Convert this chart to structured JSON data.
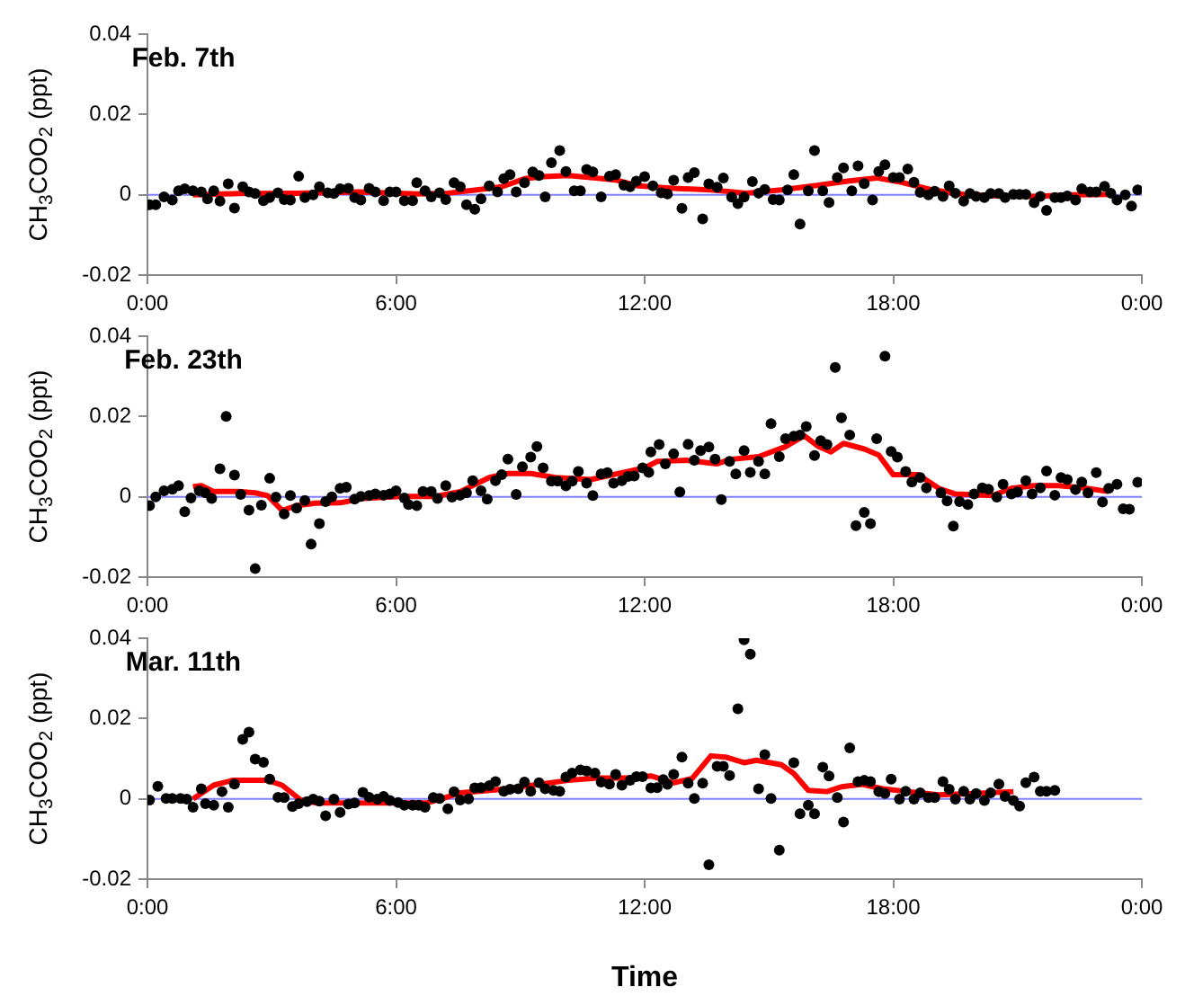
{
  "chart_data": [
    {
      "type": "scatter",
      "title": "Feb. 7th",
      "ylabel": "CH$_{3}$COO$_{2}$ (ppt)",
      "xlim": [
        0,
        24
      ],
      "xticks": [
        {
          "value": 0,
          "label": "0:00"
        },
        {
          "value": 6,
          "label": "6:00"
        },
        {
          "value": 12,
          "label": "12:00"
        },
        {
          "value": 18,
          "label": "18:00"
        },
        {
          "value": 24,
          "label": "0:00"
        }
      ],
      "ylim": [
        -0.02,
        0.04
      ],
      "yticks": [
        -0.02,
        0,
        0.02,
        0.04
      ],
      "grid": false,
      "legend": false,
      "marker": "circle",
      "ref_lines": [
        {
          "axis": "y",
          "value": 0,
          "color": "#8080ff"
        }
      ],
      "series": [
        {
          "type": "scatter",
          "color": "#000000",
          "x": [
            0.05,
            0.2,
            0.4,
            0.6,
            0.75,
            0.9,
            1.1,
            1.3,
            1.45,
            1.6,
            1.75,
            1.95,
            2.1,
            2.3,
            2.45,
            2.6,
            2.8,
            2.95,
            3.15,
            3.3,
            3.45,
            3.65,
            3.8,
            4.0,
            4.15,
            4.35,
            4.5,
            4.65,
            4.85,
            5.0,
            5.15,
            5.35,
            5.5,
            5.7,
            5.85,
            6.0,
            6.2,
            6.4,
            6.5,
            6.7,
            6.85,
            7.05,
            7.2,
            7.4,
            7.55,
            7.7,
            7.9,
            8.05,
            8.25,
            8.45,
            8.6,
            8.75,
            8.9,
            9.1,
            9.3,
            9.45,
            9.6,
            9.75,
            9.95,
            10.1,
            10.3,
            10.45,
            10.6,
            10.75,
            10.95,
            11.15,
            11.3,
            11.5,
            11.65,
            11.8,
            12.0,
            12.2,
            12.4,
            12.55,
            12.7,
            12.9,
            13.05,
            13.2,
            13.4,
            13.55,
            13.75,
            13.9,
            14.1,
            14.25,
            14.4,
            14.6,
            14.75,
            14.9,
            15.1,
            15.25,
            15.45,
            15.6,
            15.75,
            15.95,
            16.1,
            16.3,
            16.45,
            16.65,
            16.8,
            17.0,
            17.15,
            17.3,
            17.5,
            17.65,
            17.8,
            18.0,
            18.15,
            18.35,
            18.5,
            18.65,
            18.85,
            19.0,
            19.2,
            19.35,
            19.5,
            19.7,
            19.85,
            20.0,
            20.2,
            20.35,
            20.55,
            20.7,
            20.9,
            21.05,
            21.2,
            21.4,
            21.55,
            21.7,
            21.9,
            22.05,
            22.2,
            22.4,
            22.55,
            22.75,
            22.9,
            23.1,
            23.25,
            23.4,
            23.6,
            23.75,
            23.9
          ],
          "values": [
            -0.0025,
            -0.0025,
            -0.0005,
            -0.0013,
            0.001,
            0.0015,
            0.001,
            0.0007,
            -0.001,
            0.001,
            -0.0016,
            0.0027,
            -0.0033,
            0.002,
            0.0007,
            0.0003,
            -0.0015,
            -0.0007,
            0.0005,
            -0.0012,
            -0.0013,
            0.0046,
            -0.0007,
            0,
            0.002,
            0.0005,
            0.0003,
            0.0015,
            0.0016,
            -0.0007,
            -0.0013,
            0.0016,
            0.0007,
            -0.0015,
            0.0007,
            0.0007,
            -0.0015,
            -0.0015,
            0.003,
            0.001,
            -0.0005,
            0.0005,
            -0.0012,
            0.003,
            0.002,
            -0.0025,
            -0.0036,
            -0.001,
            0.0022,
            0.0007,
            0.004,
            0.005,
            0.0007,
            0.003,
            0.0057,
            0.0048,
            -0.0005,
            0.008,
            0.011,
            0.0058,
            0.001,
            0.001,
            0.0063,
            0.0057,
            -0.0005,
            0.0046,
            0.005,
            0.0024,
            0.002,
            0.0034,
            0.0045,
            0.0022,
            0.0005,
            0.0002,
            0.0036,
            -0.0034,
            0.0043,
            0.0055,
            -0.006,
            0.0027,
            0.0019,
            0.0042,
            -0.0006,
            -0.0022,
            -0.0006,
            0.0033,
            0.0004,
            0.0013,
            -0.0012,
            -0.0013,
            0.0012,
            0.005,
            -0.0073,
            0.001,
            0.011,
            0.001,
            -0.0019,
            0.0043,
            0.0067,
            0.001,
            0.0072,
            0.0028,
            -0.0013,
            0.0058,
            0.0075,
            0.0043,
            0.0043,
            0.0064,
            0.0031,
            0.0006,
            0,
            0.0009,
            -0.0004,
            0.0022,
            0.0004,
            -0.0016,
            0.0003,
            -0.0004,
            -0.0007,
            0.0003,
            0.0003,
            -0.0007,
            0.0001,
            0.0001,
            0.0001,
            -0.002,
            -0.0004,
            -0.0039,
            -0.0007,
            -0.0007,
            -0.0003,
            -0.0013,
            0.0015,
            0.0007,
            0.0007,
            0.0021,
            0.0004,
            -0.0013,
            0,
            -0.0028,
            0.0012
          ]
        },
        {
          "type": "line",
          "marker": "none",
          "color": "#ff0000",
          "x": [
            1.1,
            2.2,
            3.6,
            5.1,
            6.5,
            7.25,
            7.95,
            8.55,
            9.1,
            9.55,
            10.15,
            10.7,
            11.3,
            11.85,
            12.7,
            13.6,
            14.45,
            15.3,
            16.2,
            16.9,
            17.6,
            18.2,
            18.95,
            19.7,
            20.55,
            21.4,
            22.3,
            23.3
          ],
          "values": [
            0,
            0.0003,
            0.0004,
            0.0007,
            0.0002,
            0.0004,
            0.0012,
            0.002,
            0.004,
            0.0045,
            0.0048,
            0.0043,
            0.0037,
            0.0022,
            0.0016,
            0.0012,
            0.0004,
            0.0012,
            0.0024,
            0.0034,
            0.0042,
            0.0031,
            0.0012,
            0.0001,
            -0.0003,
            -0.0004,
            0,
            0.0001
          ]
        }
      ]
    },
    {
      "type": "scatter",
      "title": "Feb. 23th",
      "ylabel": "CH$_{3}$COO$_{2}$ (ppt)",
      "xlim": [
        0,
        24
      ],
      "xticks": [
        {
          "value": 0,
          "label": "0:00"
        },
        {
          "value": 6,
          "label": "6:00"
        },
        {
          "value": 12,
          "label": "12:00"
        },
        {
          "value": 18,
          "label": "18:00"
        },
        {
          "value": 24,
          "label": "0:00"
        }
      ],
      "ylim": [
        -0.02,
        0.04
      ],
      "yticks": [
        -0.02,
        0,
        0.02,
        0.04
      ],
      "grid": false,
      "legend": false,
      "marker": "circle",
      "ref_lines": [
        {
          "axis": "y",
          "value": 0,
          "color": "#8080ff"
        }
      ],
      "series": [
        {
          "type": "scatter",
          "color": "#000000",
          "x": [
            0.05,
            0.2,
            0.4,
            0.6,
            0.75,
            0.9,
            1.05,
            1.25,
            1.4,
            1.55,
            1.75,
            1.9,
            2.1,
            2.25,
            2.45,
            2.6,
            2.75,
            2.95,
            3.1,
            3.3,
            3.45,
            3.6,
            3.8,
            3.95,
            4.15,
            4.3,
            4.45,
            4.65,
            4.8,
            5.0,
            5.15,
            5.35,
            5.5,
            5.7,
            5.85,
            6.0,
            6.2,
            6.3,
            6.5,
            6.65,
            6.85,
            7.0,
            7.2,
            7.35,
            7.55,
            7.7,
            7.85,
            8.05,
            8.2,
            8.4,
            8.55,
            8.7,
            8.9,
            9.05,
            9.25,
            9.4,
            9.55,
            9.75,
            9.9,
            10.1,
            10.25,
            10.4,
            10.6,
            10.75,
            10.95,
            11.1,
            11.25,
            11.45,
            11.6,
            11.75,
            11.95,
            12.1,
            12.15,
            12.35,
            12.5,
            12.7,
            12.85,
            13.05,
            13.2,
            13.35,
            13.55,
            13.7,
            13.85,
            14.05,
            14.2,
            14.4,
            14.55,
            14.75,
            14.9,
            15.05,
            15.25,
            15.4,
            15.6,
            15.75,
            15.9,
            16.1,
            16.25,
            16.4,
            16.6,
            16.75,
            16.95,
            17.1,
            17.3,
            17.45,
            17.6,
            17.8,
            17.95,
            18.1,
            18.3,
            18.45,
            18.65,
            18.8,
            19.15,
            19.3,
            19.45,
            19.6,
            19.8,
            19.95,
            20.15,
            20.3,
            20.5,
            20.65,
            20.85,
            21.0,
            21.2,
            21.35,
            21.55,
            21.7,
            21.9,
            22.05,
            22.2,
            22.4,
            22.55,
            22.7,
            22.9,
            23.05,
            23.2,
            23.4,
            23.55,
            23.7,
            23.9
          ],
          "values": [
            -0.0022,
            0,
            0.0015,
            0.0019,
            0.0028,
            -0.0037,
            -0.0003,
            0.0015,
            0.001,
            -0.0004,
            0.007,
            0.02,
            0.0054,
            0.0006,
            -0.0033,
            -0.0179,
            -0.0021,
            0.0046,
            -0.0001,
            -0.0043,
            0.0003,
            -0.0028,
            -0.0009,
            -0.0118,
            -0.0067,
            -0.0012,
            0,
            0.0021,
            0.0024,
            -0.0006,
            0.0001,
            0.0003,
            0.0007,
            0.0004,
            0.0007,
            0.0015,
            -0.0003,
            -0.0019,
            -0.0022,
            0.0013,
            0.0013,
            -0.0004,
            0.0028,
            -0.0001,
            0.0004,
            0.001,
            0.004,
            0.0015,
            -0.0006,
            0.004,
            0.0055,
            0.0094,
            0.0006,
            0.0075,
            0.0099,
            0.0125,
            0.0072,
            0.0039,
            0.0039,
            0.0027,
            0.0039,
            0.0063,
            0.0034,
            0.0003,
            0.0057,
            0.006,
            0.0034,
            0.004,
            0.0051,
            0.0052,
            0.0072,
            0.0061,
            0.0112,
            0.013,
            0.0082,
            0.0107,
            0.0012,
            0.0131,
            0.0091,
            0.0115,
            0.0124,
            0.0094,
            -0.0007,
            0.0088,
            0.0057,
            0.0115,
            0.0061,
            0.0088,
            0.0057,
            0.0182,
            0.01,
            0.0145,
            0.0151,
            0.0154,
            0.0175,
            0.0103,
            0.014,
            0.013,
            0.0322,
            0.0197,
            0.0154,
            -0.0072,
            -0.0039,
            -0.0067,
            0.0145,
            0.035,
            0.0113,
            0.0099,
            0.0063,
            0.0037,
            0.0048,
            0.0022,
            0.001,
            -0.001,
            -0.0073,
            -0.0012,
            -0.0019,
            0.0007,
            0.0022,
            0.0019,
            -0.0001,
            0.0031,
            0.0007,
            0.0012,
            0.004,
            0.0007,
            0.0022,
            0.0064,
            0.0004,
            0.0048,
            0.0043,
            0.0018,
            0.0037,
            0.001,
            0.006,
            -0.0013,
            0.0021,
            0.0031,
            -0.003,
            -0.0031,
            0.0036
          ]
        },
        {
          "type": "line",
          "marker": "none",
          "color": "#ff0000",
          "x": [
            1.1,
            1.3,
            1.6,
            2.2,
            2.6,
            2.9,
            3.25,
            3.6,
            4.05,
            4.65,
            5.2,
            6.1,
            6.95,
            7.55,
            8.25,
            8.7,
            9.25,
            9.85,
            10.7,
            11.45,
            12.0,
            12.3,
            13.0,
            13.75,
            14.05,
            14.75,
            15.4,
            15.85,
            16.2,
            16.5,
            16.8,
            17.3,
            17.65,
            18.0,
            18.6,
            19.1,
            19.5,
            20.4,
            20.85,
            21.4,
            22.0,
            22.6,
            23.2
          ],
          "values": [
            0.0025,
            0.0028,
            0.0013,
            0.0013,
            0.001,
            0.0003,
            -0.0034,
            -0.0022,
            -0.0016,
            -0.0015,
            -0.0004,
            0.0001,
            0.0001,
            0.0013,
            0.0048,
            0.0058,
            0.0058,
            0.0048,
            0.0043,
            0.006,
            0.0072,
            0.0088,
            0.0091,
            0.0082,
            0.0093,
            0.01,
            0.0125,
            0.0152,
            0.0125,
            0.0112,
            0.0133,
            0.0119,
            0.0104,
            0.0055,
            0.0055,
            0.0021,
            0.0007,
            0.0003,
            0.0021,
            0.0028,
            0.0028,
            0.0022,
            0.0013
          ]
        }
      ]
    },
    {
      "type": "scatter",
      "title": "Mar. 11th",
      "xlabel": "Time",
      "ylabel": "CH$_{3}$COO$_{2}$ (ppt)",
      "xlim": [
        0,
        24
      ],
      "xticks": [
        {
          "value": 0,
          "label": "0:00"
        },
        {
          "value": 6,
          "label": "6:00"
        },
        {
          "value": 12,
          "label": "12:00"
        },
        {
          "value": 18,
          "label": "18:00"
        },
        {
          "value": 24,
          "label": "0:00"
        }
      ],
      "ylim": [
        -0.02,
        0.04
      ],
      "yticks": [
        -0.02,
        0,
        0.02,
        0.04
      ],
      "grid": false,
      "legend": false,
      "marker": "circle",
      "ref_lines": [
        {
          "axis": "y",
          "value": 0,
          "color": "#8080ff"
        }
      ],
      "series": [
        {
          "type": "scatter",
          "color": "#000000",
          "x": [
            0.05,
            0.25,
            0.45,
            0.6,
            0.8,
            0.95,
            1.1,
            1.3,
            1.4,
            1.6,
            1.8,
            1.95,
            2.1,
            2.3,
            2.45,
            2.6,
            2.8,
            2.95,
            3.15,
            3.3,
            3.5,
            3.65,
            3.85,
            4.0,
            4.15,
            4.3,
            4.5,
            4.65,
            4.85,
            5.0,
            5.2,
            5.35,
            5.55,
            5.7,
            5.85,
            6.05,
            6.2,
            6.4,
            6.55,
            6.7,
            6.9,
            7.05,
            7.25,
            7.4,
            7.55,
            7.75,
            7.9,
            8.05,
            8.25,
            8.4,
            8.6,
            8.75,
            8.95,
            9.1,
            9.25,
            9.45,
            9.6,
            9.8,
            9.95,
            10.1,
            10.25,
            10.45,
            10.6,
            10.8,
            10.95,
            11.15,
            11.3,
            11.45,
            11.65,
            11.8,
            11.95,
            12.15,
            12.3,
            12.45,
            12.55,
            12.7,
            12.9,
            13.05,
            13.2,
            13.4,
            13.55,
            13.75,
            13.9,
            14.05,
            14.25,
            14.4,
            14.55,
            14.75,
            14.9,
            15.05,
            15.25,
            15.6,
            15.75,
            15.95,
            16.1,
            16.3,
            16.45,
            16.65,
            16.8,
            16.95,
            17.15,
            17.3,
            17.45,
            17.65,
            17.8,
            17.95,
            18.15,
            18.3,
            18.5,
            18.65,
            18.85,
            19.0,
            19.2,
            19.35,
            19.5,
            19.7,
            19.85,
            20.0,
            20.2,
            20.35,
            20.55,
            20.7,
            20.9,
            21.05,
            21.2,
            21.4,
            21.55,
            21.7,
            21.9
          ],
          "values": [
            -0.0003,
            0.0031,
            0.0001,
            0.0001,
            0.0001,
            -0.0001,
            -0.0021,
            0.0025,
            -0.0012,
            -0.0016,
            0.0018,
            -0.0021,
            0.0037,
            0.0148,
            0.0166,
            0.0099,
            0.0091,
            0.0049,
            0.0004,
            0.0003,
            -0.0019,
            -0.0012,
            -0.0007,
            -0.0001,
            -0.0006,
            -0.0042,
            -0.0001,
            -0.0034,
            -0.0013,
            -0.001,
            0.0016,
            0.0004,
            -0.0001,
            0.0006,
            -0.0004,
            -0.0009,
            -0.0016,
            -0.0016,
            -0.0016,
            -0.0021,
            0.0003,
            0.0001,
            -0.0025,
            0.0018,
            -0.0003,
            0,
            0.0027,
            0.0028,
            0.0033,
            0.0043,
            0.0019,
            0.0024,
            0.0025,
            0.0042,
            0.0019,
            0.004,
            0.0025,
            0.0021,
            0.0019,
            0.0054,
            0.0064,
            0.0072,
            0.0069,
            0.0064,
            0.0042,
            0.0037,
            0.0061,
            0.0034,
            0.0046,
            0.0055,
            0.0055,
            0.0027,
            0.0028,
            0.0048,
            0.0036,
            0.0061,
            0.0104,
            0.0039,
            0.0001,
            0.0039,
            -0.0164,
            0.0081,
            0.0081,
            0.0058,
            0.0224,
            0.0396,
            0.036,
            0.0025,
            0.011,
            0.0001,
            -0.0128,
            0.009,
            -0.0037,
            -0.0016,
            -0.0037,
            0.0079,
            0.0057,
            0.0003,
            -0.0058,
            0.0127,
            0.0043,
            0.0046,
            0.0043,
            0.0018,
            0.0013,
            0.0049,
            -0.0001,
            0.0019,
            -0.0001,
            0.0015,
            0.0003,
            0.0003,
            0.0043,
            0.0024,
            -0.0001,
            0.0019,
            -0.0001,
            0.0013,
            -0.0004,
            0.0015,
            0.0037,
            0.0006,
            -0.0004,
            -0.0018,
            0.004,
            0.0054,
            0.0019,
            0.0019,
            0.0021
          ]
        },
        {
          "type": "line",
          "marker": "none",
          "color": "#ff0000",
          "x": [
            1.1,
            1.6,
            2.05,
            2.9,
            3.25,
            3.7,
            4.05,
            5.05,
            6.1,
            6.75,
            7.1,
            7.55,
            8.4,
            9.3,
            10.15,
            10.85,
            11.6,
            12.15,
            12.7,
            13.15,
            13.6,
            13.95,
            14.4,
            14.7,
            15.3,
            15.6,
            15.95,
            16.4,
            16.75,
            17.25,
            17.75,
            18.35,
            19.1,
            19.95,
            20.9
          ],
          "values": [
            0,
            0.0034,
            0.0046,
            0.0046,
            0.0034,
            -0.0003,
            -0.001,
            -0.001,
            -0.001,
            -0.001,
            0,
            0.0015,
            0.0022,
            0.0034,
            0.0046,
            0.0052,
            0.0052,
            0.0057,
            0.004,
            0.0051,
            0.0107,
            0.0104,
            0.009,
            0.0096,
            0.0085,
            0.0063,
            0.0021,
            0.0018,
            0.003,
            0.0036,
            0.0025,
            0.0018,
            0.001,
            0.0013,
            0.0018
          ]
        }
      ]
    }
  ]
}
